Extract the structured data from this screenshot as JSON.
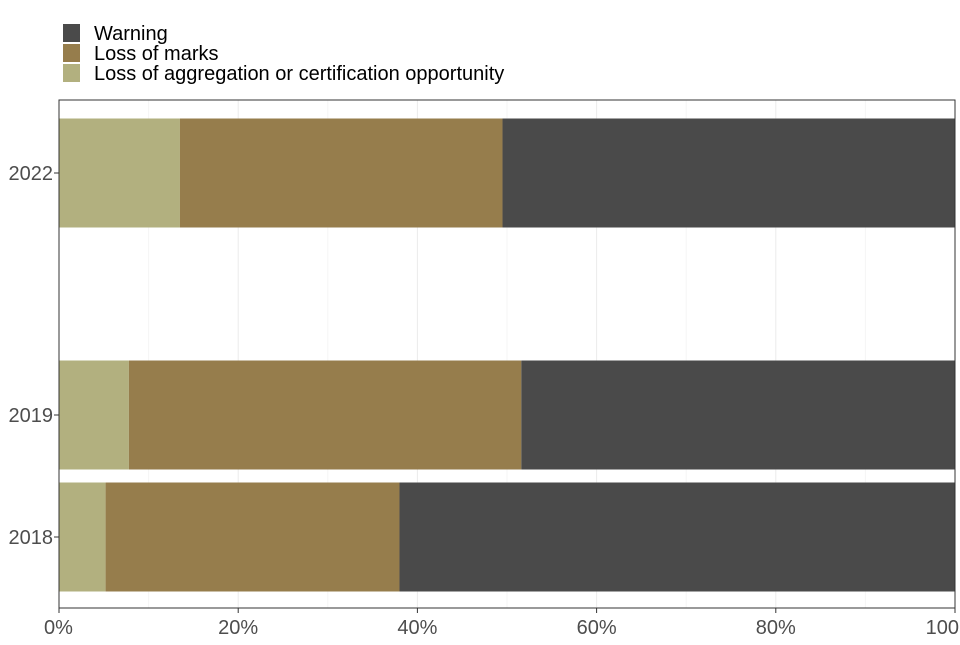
{
  "chart_data": {
    "type": "bar",
    "orientation": "horizontal",
    "stacked": true,
    "categories": [
      "2018",
      "2019",
      "2022"
    ],
    "series": [
      {
        "name": "Loss of aggregation or certification opportunity",
        "color": "#b2b07f",
        "values": [
          5.2,
          7.8,
          13.5
        ]
      },
      {
        "name": "Loss of marks",
        "color": "#967d4c",
        "values": [
          32.8,
          43.8,
          36.0
        ]
      },
      {
        "name": "Warning",
        "color": "#4a4a4a",
        "values": [
          62.0,
          48.4,
          50.5
        ]
      }
    ],
    "xlim": [
      0,
      100
    ],
    "xticks": [
      0,
      20,
      40,
      60,
      80,
      100
    ],
    "xtick_labels": [
      "0%",
      "20%",
      "40%",
      "60%",
      "80%",
      "100"
    ],
    "legend": {
      "placement": "top-left",
      "order": [
        "Warning",
        "Loss of marks",
        "Loss of aggregation or certification opportunity"
      ]
    },
    "grid": "vertical major lines"
  }
}
